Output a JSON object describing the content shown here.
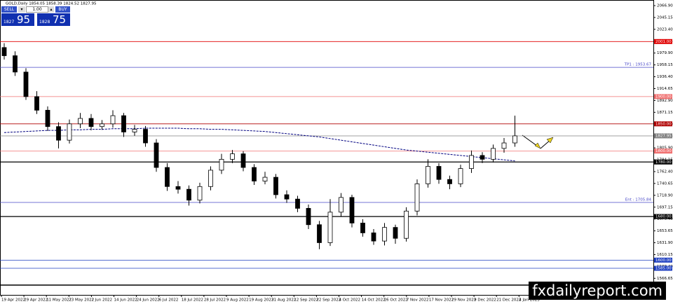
{
  "header": {
    "title": "GOLD,Daily  1854.05 1858.39 1824.52 1827.95"
  },
  "trade_panel": {
    "sell": "SELL",
    "buy": "BUY",
    "lot": "1.00",
    "bid_small": "1827",
    "bid_big": "95",
    "ask_small": "1828",
    "ask_big": "75"
  },
  "watermark": "fxdailyreport.com",
  "chart_data": {
    "type": "candlestick",
    "ylim": [
      1536.2,
      2077.2
    ],
    "yticks": [
      {
        "value": 2066.9,
        "label": "2066.90"
      },
      2045.15,
      {
        "value": 2023.4,
        "label": "2023.40"
      },
      2001.65,
      {
        "value": 1979.9,
        "label": "1979.90"
      },
      1958.15,
      {
        "value": 1936.4,
        "label": "1936.40"
      },
      1914.65,
      {
        "value": 1892.9,
        "label": "1892.90"
      },
      1871.15,
      {
        "value": 1849.4,
        "label": "1849.40"
      },
      1827.65,
      {
        "value": 1805.9,
        "label": "1805.90"
      },
      1784.15,
      {
        "value": 1762.4,
        "label": "1762.40"
      },
      1740.65,
      {
        "value": 1718.9,
        "label": "1718.90"
      },
      1697.15,
      {
        "value": 1675.4,
        "label": "1675.40"
      },
      1653.65,
      {
        "value": 1631.9,
        "label": "1631.90"
      },
      1610.15,
      {
        "value": 1588.4,
        "label": "1588.40"
      },
      1566.65
    ],
    "x_labels": [
      "19 Apr 2022",
      "29 Apr 2022",
      "11 May 2022",
      "23 May 2022",
      "2 Jun 2022",
      "14 Jun 2022",
      "24 Jun 2022",
      "6 Jul 2022",
      "18 Jul 2022",
      "28 Jul 2022",
      "9 Aug 2022",
      "19 Aug 2022",
      "31 Aug 2022",
      "12 Sep 2022",
      "22 Sep 2022",
      "4 Oct 2022",
      "14 Oct 2022",
      "26 Oct 2022",
      "7 Nov 2022",
      "17 Nov 2022",
      "29 Nov 2022",
      "9 Dec 2022",
      "21 Dec 2022",
      "4 Jan 2023"
    ],
    "open": [
      1990,
      1975,
      1945,
      1900,
      1875,
      1845,
      1820,
      1850,
      1860,
      1845,
      1850,
      1865,
      1835,
      1840,
      1815,
      1770,
      1735,
      1730,
      1710,
      1735,
      1765,
      1785,
      1795,
      1770,
      1745,
      1752,
      1720,
      1712,
      1695,
      1665,
      1632,
      1688,
      1715,
      1668,
      1650,
      1635,
      1660,
      1640,
      1690,
      1740,
      1772,
      1748,
      1740,
      1768,
      1792,
      1785,
      1805,
      1815
    ],
    "high": [
      1998,
      1983,
      1952,
      1910,
      1882,
      1853,
      1858,
      1870,
      1868,
      1857,
      1875,
      1870,
      1848,
      1846,
      1822,
      1778,
      1745,
      1737,
      1742,
      1772,
      1795,
      1802,
      1800,
      1776,
      1762,
      1758,
      1728,
      1718,
      1702,
      1672,
      1712,
      1723,
      1720,
      1675,
      1657,
      1668,
      1665,
      1697,
      1748,
      1785,
      1778,
      1755,
      1775,
      1801,
      1798,
      1812,
      1824,
      1865
    ],
    "low": [
      1968,
      1938,
      1894,
      1868,
      1837,
      1805,
      1814,
      1842,
      1838,
      1839,
      1843,
      1826,
      1828,
      1808,
      1762,
      1727,
      1722,
      1700,
      1704,
      1728,
      1758,
      1778,
      1763,
      1738,
      1739,
      1713,
      1705,
      1688,
      1657,
      1620,
      1626,
      1680,
      1660,
      1643,
      1628,
      1627,
      1630,
      1634,
      1682,
      1733,
      1740,
      1730,
      1734,
      1760,
      1778,
      1779,
      1797,
      1808
    ],
    "close": [
      1975,
      1945,
      1900,
      1875,
      1845,
      1820,
      1850,
      1860,
      1845,
      1850,
      1865,
      1835,
      1840,
      1815,
      1770,
      1735,
      1730,
      1710,
      1735,
      1765,
      1785,
      1795,
      1770,
      1745,
      1752,
      1720,
      1712,
      1695,
      1665,
      1632,
      1688,
      1715,
      1668,
      1650,
      1635,
      1660,
      1640,
      1690,
      1740,
      1772,
      1748,
      1740,
      1768,
      1792,
      1785,
      1805,
      1815,
      1828
    ],
    "moving_average": {
      "color": "#000080",
      "values": [
        1834,
        1835,
        1836,
        1837,
        1838,
        1838,
        1839,
        1839,
        1840,
        1840,
        1841,
        1841,
        1841,
        1842,
        1842,
        1842,
        1842,
        1841,
        1841,
        1840,
        1840,
        1839,
        1838,
        1837,
        1836,
        1834,
        1832,
        1830,
        1828,
        1826,
        1823,
        1820,
        1817,
        1814,
        1811,
        1808,
        1805,
        1802,
        1800,
        1798,
        1796,
        1794,
        1792,
        1790,
        1788,
        1786,
        1784,
        1782
      ]
    },
    "levels": [
      {
        "value": 2001,
        "label": "2001.00",
        "color": "#e00000",
        "style": "box"
      },
      {
        "value": 1953.67,
        "label": "TP1 : 1953.67",
        "color": "#4848c8",
        "style": "tag"
      },
      {
        "value": 1900,
        "label": "1900.00",
        "color": "#f07070",
        "style": "box"
      },
      {
        "value": 1850,
        "label": "1850.00",
        "color": "#b00000",
        "style": "box"
      },
      {
        "value": 1827.95,
        "label": "1827.95",
        "color": "#808080",
        "style": "box"
      },
      {
        "value": 1800,
        "label": "1800.00",
        "color": "#f07070",
        "style": "box"
      },
      {
        "value": 1780,
        "label": "1780.00",
        "color": "#000000",
        "style": "box"
      },
      {
        "value": 1705.84,
        "label": "Ent : 1705.84",
        "color": "#4848c8",
        "style": "tag"
      },
      {
        "value": 1680,
        "label": "1680.00",
        "color": "#000000",
        "style": "box"
      },
      {
        "value": 1600,
        "label": "1600.00",
        "color": "#2040c0",
        "style": "box"
      },
      {
        "value": 1585,
        "label": "1585.00",
        "color": "#2040c0",
        "style": "box"
      }
    ]
  }
}
